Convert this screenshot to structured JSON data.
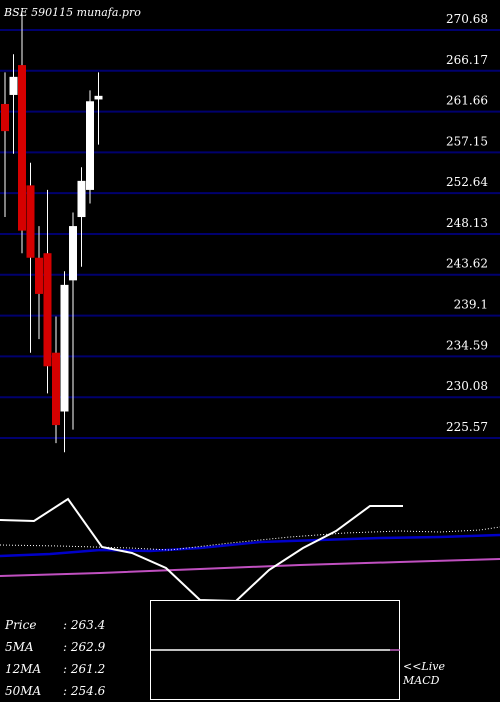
{
  "watermark": "BSE 590115 munafa.pro",
  "chart_data": {
    "type": "candlestick",
    "y_ticks": [
      "270.68",
      "266.17",
      "261.66",
      "257.15",
      "252.64",
      "248.13",
      "243.62",
      "239.1",
      "234.59",
      "230.08",
      "225.57"
    ],
    "ylim": [
      225.57,
      270.68
    ],
    "candles": [
      {
        "o": 262.5,
        "h": 266.0,
        "l": 250.0,
        "c": 259.5
      },
      {
        "o": 263.5,
        "h": 268.0,
        "l": 257.0,
        "c": 265.5
      },
      {
        "o": 266.8,
        "h": 272.5,
        "l": 246.0,
        "c": 248.5
      },
      {
        "o": 253.5,
        "h": 256.0,
        "l": 235.0,
        "c": 245.5
      },
      {
        "o": 245.5,
        "h": 249.0,
        "l": 236.5,
        "c": 241.5
      },
      {
        "o": 246.0,
        "h": 253.0,
        "l": 230.5,
        "c": 233.5
      },
      {
        "o": 235.0,
        "h": 239.0,
        "l": 225.0,
        "c": 227.0
      },
      {
        "o": 228.5,
        "h": 244.0,
        "l": 224.0,
        "c": 242.5
      },
      {
        "o": 243.0,
        "h": 250.5,
        "l": 226.5,
        "c": 249.0
      },
      {
        "o": 250.0,
        "h": 255.5,
        "l": 244.5,
        "c": 254.0
      },
      {
        "o": 253.0,
        "h": 264.0,
        "l": 251.5,
        "c": 262.8
      },
      {
        "o": 263.0,
        "h": 266.0,
        "l": 258.0,
        "c": 263.4
      }
    ],
    "indicator_lines": {
      "white": [
        [
          0,
          520
        ],
        [
          34,
          521
        ],
        [
          68,
          499
        ],
        [
          102,
          547
        ],
        [
          132,
          553
        ],
        [
          166,
          568
        ],
        [
          200,
          600
        ],
        [
          236,
          601
        ],
        [
          269,
          570
        ],
        [
          303,
          548
        ],
        [
          336,
          531
        ],
        [
          370,
          506
        ],
        [
          403,
          506
        ]
      ],
      "dotted": [
        [
          0,
          545
        ],
        [
          60,
          546
        ],
        [
          130,
          548
        ],
        [
          170,
          550
        ],
        [
          230,
          543
        ],
        [
          290,
          537
        ],
        [
          345,
          533
        ],
        [
          400,
          531
        ],
        [
          440,
          532
        ],
        [
          480,
          530
        ],
        [
          500,
          527
        ]
      ],
      "blue": [
        [
          0,
          556
        ],
        [
          50,
          554
        ],
        [
          100,
          550
        ],
        [
          150,
          551
        ],
        [
          200,
          548
        ],
        [
          260,
          542
        ],
        [
          320,
          540
        ],
        [
          380,
          538
        ],
        [
          440,
          537
        ],
        [
          500,
          535
        ]
      ],
      "magenta": [
        [
          0,
          576
        ],
        [
          100,
          573
        ],
        [
          200,
          569
        ],
        [
          300,
          565
        ],
        [
          400,
          562
        ],
        [
          500,
          559
        ]
      ],
      "macd_line": [
        [
          150,
          650
        ],
        [
          390,
          650
        ]
      ],
      "macd_tick": [
        [
          390,
          650
        ],
        [
          400,
          650
        ]
      ]
    },
    "colors": {
      "up": "#ffffff",
      "down": "#d60000",
      "grid": "#00006e",
      "blue": "#0000c8",
      "magenta": "#c050c0",
      "white": "#ffffff",
      "macd_tick": "#c060c0"
    }
  },
  "stats": {
    "price_label": "Price",
    "price": "263.4",
    "ma5_label": "5MA",
    "ma5": "262.9",
    "ma12_label": "12MA",
    "ma12": "261.2",
    "ma50_label": "50MA",
    "ma50": "254.6"
  },
  "live_macd": {
    "line1": "<<Live",
    "line2": "MACD"
  }
}
